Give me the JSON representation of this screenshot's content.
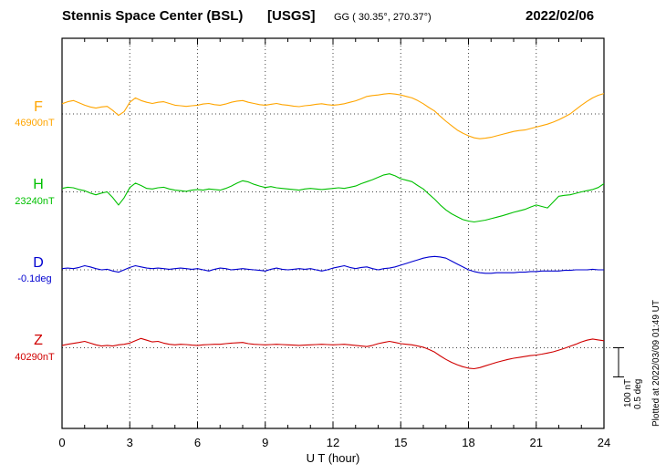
{
  "header": {
    "station": "Stennis Space Center (BSL)",
    "agency": "[USGS]",
    "coords": "GG ( 30.35°, 270.37°)",
    "date": "2022/02/06"
  },
  "channels": [
    {
      "code": "F",
      "baseline_label": "46900nT",
      "color": "#FFA500",
      "units": "nT"
    },
    {
      "code": "H",
      "baseline_label": "23240nT",
      "color": "#00C000",
      "units": "nT"
    },
    {
      "code": "D",
      "baseline_label": "-0.1deg",
      "color": "#0000D0",
      "units": "deg"
    },
    {
      "code": "Z",
      "baseline_label": "40290nT",
      "color": "#D00000",
      "units": "nT"
    }
  ],
  "axis": {
    "xlabel": "U T (hour)"
  },
  "scale_bar": {
    "labels": [
      "100 nT",
      "0.5 deg"
    ]
  },
  "footer_rotated": "Plotted at 2022/03/09 01:49 UT",
  "chart_data": {
    "type": "line",
    "title": "Stennis Space Center (BSL) [USGS] magnetogram 2022/02/06",
    "xlabel": "U T (hour)",
    "xlim": [
      0,
      24
    ],
    "x_ticks": [
      0,
      3,
      6,
      9,
      12,
      15,
      18,
      21,
      24
    ],
    "x_start": 0,
    "x_step": 0.25,
    "grid": "dotted vertical lines every 3 h, dotted horizontal baseline per trace",
    "scale": {
      "nT_per_div": 100,
      "deg_per_div": 0.5
    },
    "note": "values are offsets from each channel baseline (nT for F,H,Z; deg for D)",
    "series": [
      {
        "name": "F",
        "units": "nT",
        "baseline": 46900,
        "color": "#FFA500",
        "values": [
          35,
          42,
          46,
          38,
          30,
          24,
          20,
          24,
          26,
          12,
          -5,
          8,
          40,
          55,
          46,
          40,
          36,
          40,
          42,
          36,
          30,
          28,
          26,
          28,
          30,
          34,
          36,
          32,
          30,
          34,
          40,
          44,
          46,
          40,
          36,
          32,
          30,
          33,
          36,
          32,
          30,
          27,
          25,
          28,
          30,
          33,
          35,
          32,
          30,
          32,
          35,
          40,
          45,
          52,
          60,
          63,
          65,
          68,
          70,
          68,
          65,
          60,
          55,
          46,
          35,
          22,
          10,
          -8,
          -25,
          -40,
          -55,
          -66,
          -75,
          -82,
          -85,
          -83,
          -80,
          -75,
          -70,
          -65,
          -60,
          -57,
          -55,
          -50,
          -45,
          -40,
          -35,
          -28,
          -20,
          -10,
          0,
          15,
          30,
          43,
          55,
          64,
          70
        ]
      },
      {
        "name": "H",
        "units": "nT",
        "baseline": 23240,
        "color": "#00C000",
        "values": [
          12,
          16,
          14,
          8,
          4,
          -4,
          -10,
          -4,
          0,
          -20,
          -45,
          -20,
          15,
          30,
          22,
          12,
          10,
          14,
          16,
          10,
          6,
          4,
          2,
          6,
          8,
          6,
          10,
          8,
          6,
          12,
          20,
          30,
          38,
          34,
          26,
          20,
          15,
          18,
          14,
          12,
          10,
          8,
          6,
          10,
          12,
          10,
          8,
          10,
          12,
          14,
          12,
          16,
          20,
          28,
          35,
          42,
          50,
          58,
          62,
          55,
          45,
          40,
          35,
          22,
          10,
          -8,
          -25,
          -45,
          -62,
          -75,
          -85,
          -95,
          -100,
          -103,
          -100,
          -97,
          -92,
          -87,
          -82,
          -76,
          -70,
          -65,
          -60,
          -52,
          -45,
          -50,
          -55,
          -35,
          -15,
          -12,
          -10,
          -5,
          0,
          4,
          8,
          15,
          28
        ]
      },
      {
        "name": "D",
        "units": "deg",
        "baseline": -0.1,
        "color": "#0000D0",
        "values": [
          0.02,
          0.03,
          0.02,
          0.04,
          0.07,
          0.05,
          0.02,
          0.0,
          0.01,
          -0.02,
          -0.04,
          0.0,
          0.04,
          0.07,
          0.05,
          0.03,
          0.02,
          0.03,
          0.02,
          0.01,
          0.02,
          0.03,
          0.02,
          0.01,
          0.02,
          0.0,
          -0.02,
          0.01,
          0.03,
          0.02,
          0.0,
          0.01,
          0.02,
          0.01,
          0.0,
          -0.01,
          -0.02,
          0.01,
          0.03,
          0.01,
          0.0,
          0.01,
          0.02,
          0.01,
          0.02,
          0.0,
          -0.02,
          0.0,
          0.03,
          0.05,
          0.07,
          0.04,
          0.02,
          0.04,
          0.05,
          0.02,
          0.0,
          0.02,
          0.03,
          0.05,
          0.08,
          0.11,
          0.14,
          0.17,
          0.2,
          0.22,
          0.23,
          0.22,
          0.2,
          0.15,
          0.1,
          0.05,
          0.0,
          -0.03,
          -0.05,
          -0.06,
          -0.06,
          -0.05,
          -0.05,
          -0.05,
          -0.05,
          -0.04,
          -0.04,
          -0.03,
          -0.03,
          -0.02,
          -0.02,
          -0.02,
          -0.02,
          -0.01,
          -0.01,
          0.0,
          0.0,
          0.0,
          0.01,
          0.0,
          0.0
        ]
      },
      {
        "name": "Z",
        "units": "nT",
        "baseline": 40290,
        "color": "#D00000",
        "values": [
          8,
          12,
          15,
          18,
          22,
          16,
          10,
          6,
          8,
          6,
          10,
          12,
          16,
          24,
          32,
          26,
          20,
          22,
          16,
          12,
          10,
          12,
          11,
          9,
          8,
          10,
          11,
          12,
          12,
          14,
          16,
          17,
          18,
          14,
          12,
          11,
          10,
          11,
          12,
          11,
          10,
          9,
          8,
          9,
          10,
          11,
          12,
          11,
          10,
          11,
          12,
          10,
          8,
          6,
          4,
          8,
          14,
          18,
          22,
          18,
          14,
          12,
          10,
          6,
          2,
          -6,
          -15,
          -28,
          -40,
          -50,
          -58,
          -65,
          -70,
          -72,
          -68,
          -62,
          -56,
          -50,
          -45,
          -40,
          -36,
          -33,
          -30,
          -27,
          -25,
          -22,
          -18,
          -14,
          -8,
          -2,
          5,
          12,
          20,
          26,
          30,
          27,
          24
        ]
      }
    ]
  }
}
